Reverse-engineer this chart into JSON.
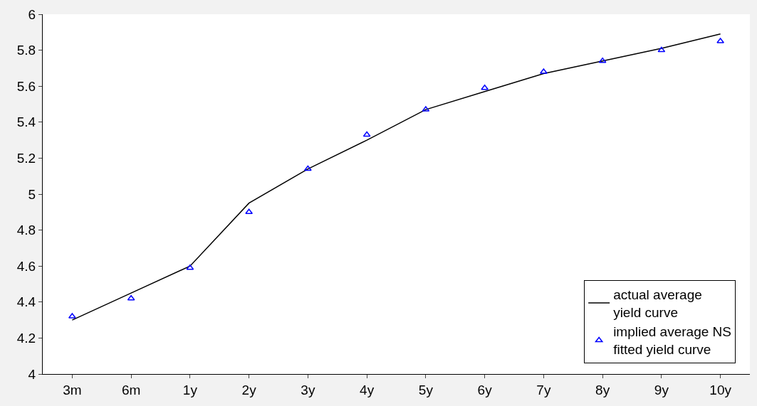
{
  "chart_data": {
    "type": "line",
    "categories": [
      "3m",
      "6m",
      "1y",
      "2y",
      "3y",
      "4y",
      "5y",
      "6y",
      "7y",
      "8y",
      "9y",
      "10y"
    ],
    "ylim": [
      4,
      6
    ],
    "yticks": [
      4,
      4.2,
      4.4,
      4.6,
      4.8,
      5,
      5.2,
      5.4,
      5.6,
      5.8,
      6
    ],
    "legend": "bottom right",
    "series": [
      {
        "name": "actual average yield curve",
        "color": "#000000",
        "line_style": "solid",
        "marker": "none",
        "values": [
          4.3,
          4.45,
          4.6,
          4.95,
          5.14,
          5.3,
          5.47,
          5.57,
          5.67,
          5.74,
          5.81,
          5.89
        ]
      },
      {
        "name": "implied average NS fitted yield curve",
        "type": "scatter",
        "color": "#0000ff",
        "marker": "triangle",
        "values": [
          4.32,
          4.42,
          4.59,
          4.9,
          5.14,
          5.33,
          5.47,
          5.59,
          5.68,
          5.74,
          5.8,
          5.85
        ]
      }
    ]
  }
}
